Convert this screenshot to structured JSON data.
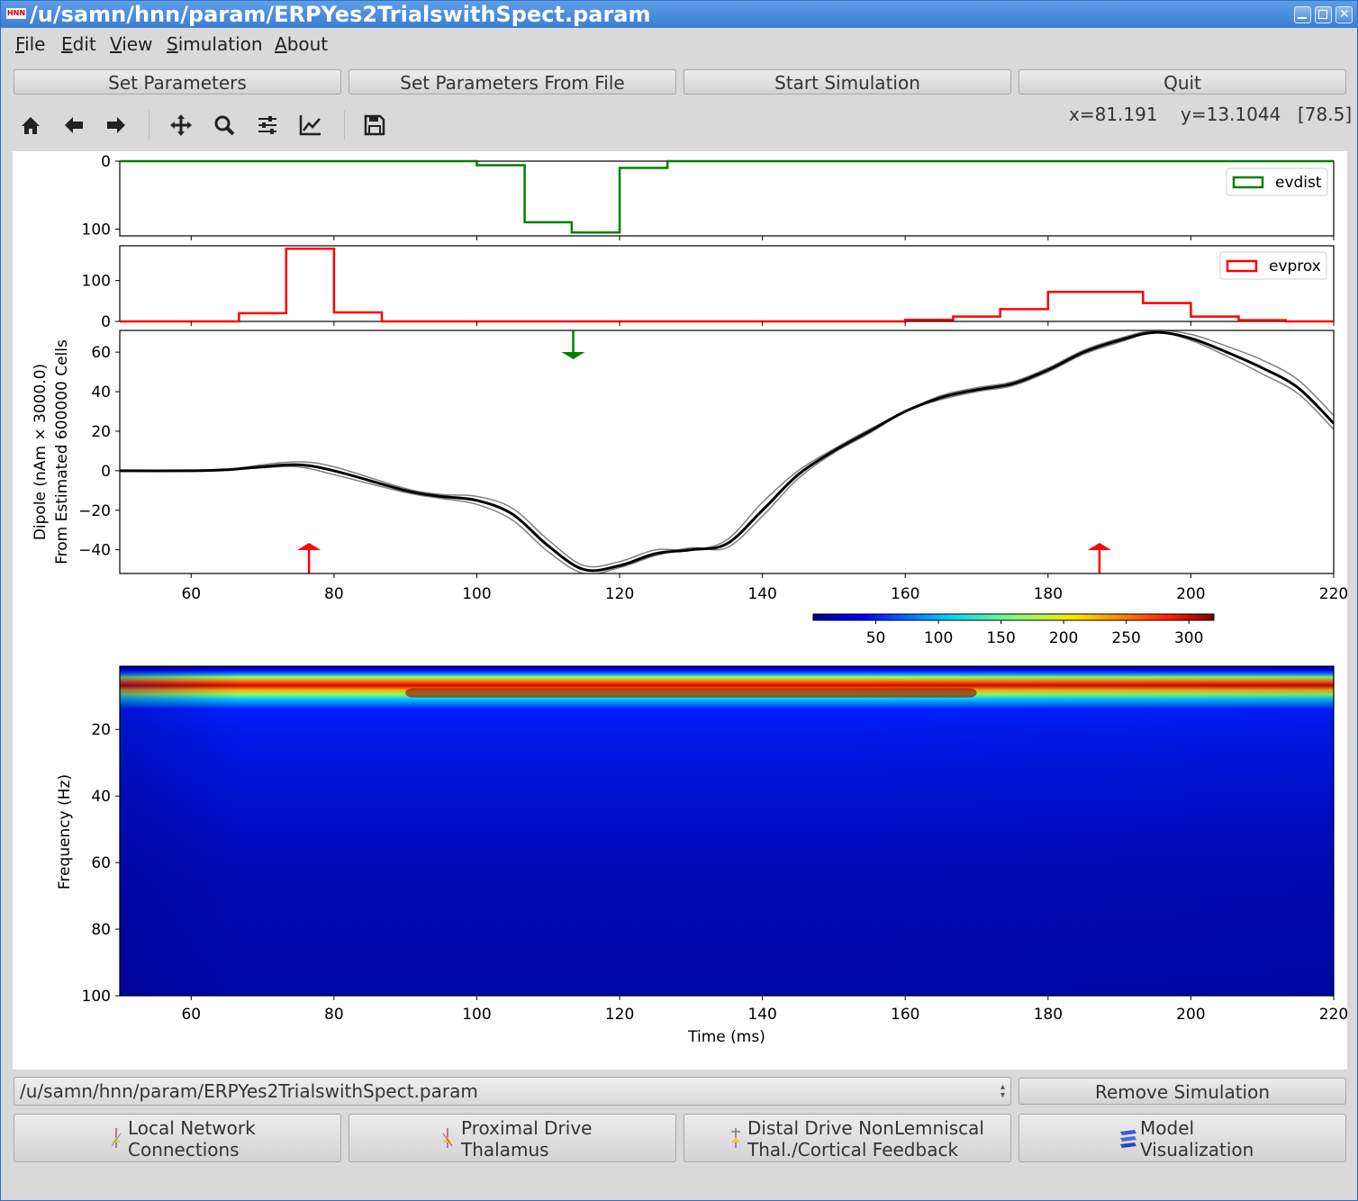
{
  "window": {
    "title": "/u/samn/hnn/param/ERPYes2TrialswithSpect.param",
    "app_icon_text": "HNN"
  },
  "menu": [
    "File",
    "Edit",
    "View",
    "Simulation",
    "About"
  ],
  "toolbar_buttons": {
    "set_parameters": "Set Parameters",
    "set_parameters_from_file": "Set Parameters From File",
    "start_simulation": "Start Simulation",
    "quit": "Quit"
  },
  "nav_icons": [
    "home-icon",
    "back-arrow-icon",
    "forward-arrow-icon",
    "pan-icon",
    "zoom-icon",
    "subplots-config-icon",
    "axes-edit-icon",
    "save-icon"
  ],
  "coords": {
    "x": "x=81.191",
    "y": "y=13.1044",
    "value": "[78.5]"
  },
  "chart_data": [
    {
      "type": "line",
      "name_id": "evdist-histogram",
      "series": [
        {
          "name": "evdist",
          "color": "#008000",
          "x": [
            50,
            100,
            100,
            106.7,
            106.7,
            113.3,
            113.3,
            120,
            120,
            126.7,
            126.7,
            220
          ],
          "y": [
            0,
            0,
            6,
            6,
            90,
            90,
            105,
            105,
            10,
            10,
            0,
            0
          ]
        }
      ],
      "ylim": [
        110,
        0
      ],
      "xlim": [
        50,
        220
      ],
      "yticks": [
        "0",
        "100"
      ],
      "legend": "top-right"
    },
    {
      "type": "line",
      "name_id": "evprox-histogram",
      "series": [
        {
          "name": "evprox",
          "color": "#ff0000",
          "x": [
            50,
            66.7,
            66.7,
            73.3,
            73.3,
            80,
            80,
            86.7,
            86.7,
            160,
            160,
            166.7,
            166.7,
            173.3,
            173.3,
            180,
            180,
            193.3,
            193.3,
            200,
            200,
            206.7,
            206.7,
            213.3,
            213.3,
            220
          ],
          "y": [
            0,
            0,
            20,
            20,
            178,
            178,
            22,
            22,
            0,
            0,
            4,
            4,
            12,
            12,
            30,
            30,
            72,
            72,
            45,
            45,
            12,
            12,
            3,
            3,
            0,
            0
          ]
        }
      ],
      "ylim": [
        0,
        185
      ],
      "xlim": [
        50,
        220
      ],
      "yticks": [
        "0",
        "100"
      ],
      "legend": "top-right"
    },
    {
      "type": "line",
      "name_id": "dipole-plot",
      "x": [
        50,
        60,
        65,
        70,
        75,
        80,
        90,
        95,
        100,
        105,
        110,
        115,
        120,
        125,
        130,
        135,
        140,
        145,
        150,
        155,
        160,
        165,
        170,
        175,
        180,
        185,
        190,
        195,
        200,
        205,
        210,
        215,
        220
      ],
      "series": [
        {
          "name": "",
          "color": "#000000",
          "width": 3,
          "y": [
            0,
            0,
            0.5,
            2,
            3,
            0,
            -10,
            -13,
            -15,
            -22,
            -38,
            -50,
            -48,
            -42,
            -40,
            -37,
            -20,
            -2,
            10,
            20,
            30,
            37,
            41,
            44,
            51,
            60,
            66,
            70,
            67,
            60,
            52,
            42,
            24
          ]
        },
        {
          "name": "",
          "color": "#808080",
          "width": 1.5,
          "y": [
            0,
            0,
            0.5,
            3,
            4.5,
            2,
            -9,
            -12,
            -13,
            -19,
            -35,
            -48,
            -46,
            -40,
            -40,
            -35,
            -16,
            0,
            11,
            21,
            30,
            38,
            42,
            45,
            52,
            61,
            67,
            71,
            69,
            63,
            56,
            46,
            28
          ]
        },
        {
          "name": "",
          "color": "#808080",
          "width": 1.5,
          "y": [
            0,
            0,
            0.5,
            1.5,
            2,
            -2,
            -11,
            -14,
            -17,
            -25,
            -41,
            -52,
            -49,
            -43,
            -39,
            -39,
            -23,
            -4,
            9,
            19,
            30,
            36,
            40,
            43,
            50,
            59,
            65,
            70,
            66,
            58,
            49,
            39,
            21
          ]
        }
      ],
      "ylim": [
        -52,
        71
      ],
      "xlim": [
        50,
        220
      ],
      "yticks": [
        "60",
        "40",
        "20",
        "0",
        "−20",
        "−40"
      ],
      "xticks": [
        "60",
        "80",
        "100",
        "120",
        "140",
        "160",
        "180",
        "200",
        "220"
      ],
      "ylabel": [
        "Dipole (nAm × 3000.0)",
        "From Estimated 600000 Cells"
      ],
      "input_arrows": [
        {
          "x": 113.5,
          "direction": "down",
          "color": "#008000"
        },
        {
          "x": 76.5,
          "direction": "up",
          "color": "#ff0000"
        },
        {
          "x": 187.2,
          "direction": "up",
          "color": "#ff0000"
        }
      ]
    },
    {
      "type": "heatmap",
      "name_id": "spectrogram",
      "colormap": "jet",
      "xlim": [
        50,
        220
      ],
      "ylim": [
        1,
        100
      ],
      "xticks": [
        "60",
        "80",
        "100",
        "120",
        "140",
        "160",
        "180",
        "200",
        "220"
      ],
      "yticks": [
        "20",
        "40",
        "60",
        "80",
        "100"
      ],
      "xlabel": "Time (ms)",
      "ylabel": "Frequency (Hz)",
      "colorbar": {
        "range": [
          0,
          320
        ],
        "ticks": [
          "50",
          "100",
          "150",
          "200",
          "250",
          "300"
        ]
      },
      "description_values": {
        "peak_frequency_hz": 9,
        "peak_power": 300,
        "background_power": 30
      }
    }
  ],
  "bottom": {
    "sim_selector": "/u/samn/hnn/param/ERPYes2TrialswithSpect.param",
    "remove_simulation": "Remove Simulation",
    "local_network": [
      "Local Network",
      "Connections"
    ],
    "proximal_drive": [
      "Proximal Drive",
      "Thalamus"
    ],
    "distal_drive": [
      "Distal Drive NonLemniscal",
      "Thal./Cortical Feedback"
    ],
    "model_visualization": [
      "Model",
      "Visualization"
    ]
  }
}
